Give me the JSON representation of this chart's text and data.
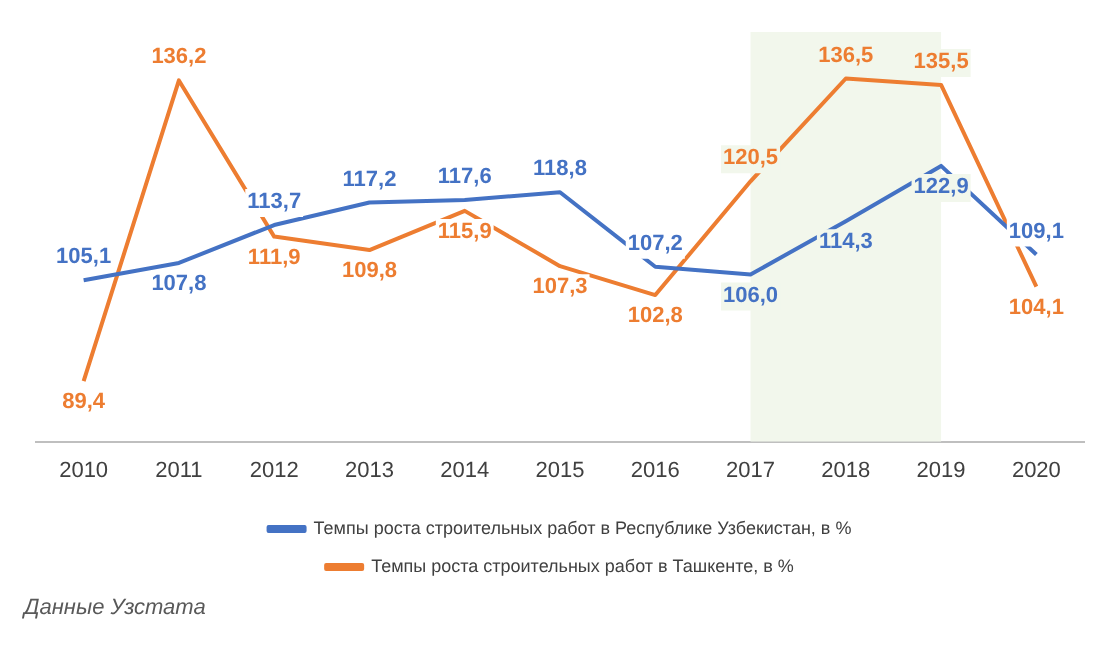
{
  "chart_data": {
    "type": "line",
    "categories": [
      "2010",
      "2011",
      "2012",
      "2013",
      "2014",
      "2015",
      "2016",
      "2017",
      "2018",
      "2019",
      "2020"
    ],
    "series": [
      {
        "name": "Темпы роста строительных работ в Республике Узбекистан, в %",
        "color": "#4472c4",
        "values": [
          105.1,
          107.8,
          113.7,
          117.2,
          117.6,
          118.8,
          107.2,
          106.0,
          114.3,
          122.9,
          109.1
        ],
        "value_labels": [
          "105,1",
          "107,8",
          "113,7",
          "117,2",
          "117,6",
          "118,8",
          "107,2",
          "106,0",
          "114,3",
          "122,9",
          "109,1"
        ]
      },
      {
        "name": "Темпы роста строительных работ в Ташкенте, в %",
        "color": "#ed7d31",
        "values": [
          89.4,
          136.2,
          111.9,
          109.8,
          115.9,
          107.3,
          102.8,
          120.5,
          136.5,
          135.5,
          104.1
        ],
        "value_labels": [
          "89,4",
          "136,2",
          "111,9",
          "109,8",
          "115,9",
          "107,3",
          "102,8",
          "120,5",
          "136,5",
          "135,5",
          "104,1"
        ]
      }
    ],
    "bands": [
      {
        "axis": "x",
        "from": "2017",
        "to": "2019",
        "color": "#f2f7ec"
      }
    ],
    "tick_labels": "x",
    "grid": false,
    "legend": "bottom",
    "marker": "none",
    "line_style": "solid",
    "annotations": [
      "Данные Узстата"
    ]
  }
}
